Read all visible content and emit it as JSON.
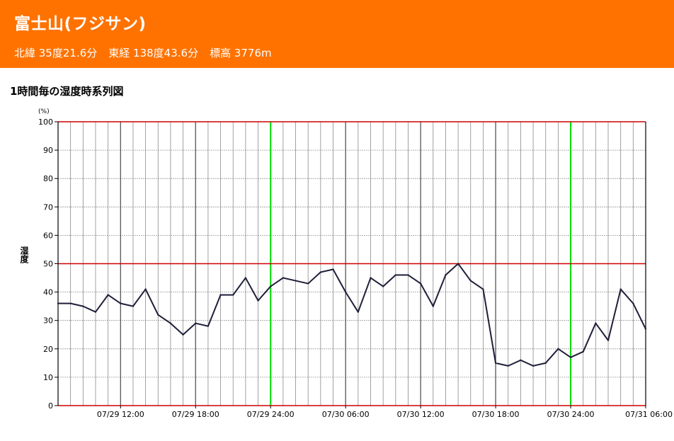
{
  "header": {
    "title": "富士山(フジサン)",
    "latitude": "北緯 35度21.6分",
    "longitude": "東経 138度43.6分",
    "elevation": "標高 3776m"
  },
  "section": {
    "title": "1時間毎の湿度時系列図"
  },
  "colors": {
    "header_bg": "#ff7200",
    "series_line": "#1f1f3a",
    "midnight_line": "#00dd00",
    "reference_line": "#cc0000"
  },
  "chart_data": {
    "type": "line",
    "title": "",
    "xlabel": "",
    "ylabel": "湿度",
    "yunit": "(%)",
    "ylim": [
      0,
      100
    ],
    "yticks": [
      0,
      10,
      20,
      30,
      40,
      50,
      60,
      70,
      80,
      90,
      100
    ],
    "grid": true,
    "x_tick_labels": [
      "07/29 12:00",
      "07/29 18:00",
      "07/29 24:00",
      "07/30 06:00",
      "07/30 12:00",
      "07/30 18:00",
      "07/30 24:00",
      "07/31 06:00"
    ],
    "x_start": "07/29 07:00",
    "x_end": "07/31 06:00",
    "series": [
      {
        "values": [
          36,
          36,
          35,
          33,
          39,
          36,
          35,
          41,
          32,
          29,
          25,
          29,
          28,
          39,
          39,
          45,
          37,
          42,
          45,
          44,
          43,
          47,
          48,
          40,
          33,
          45,
          42,
          46,
          46,
          43,
          35,
          46,
          50,
          44,
          41,
          15,
          14,
          16,
          14,
          15,
          20,
          17,
          19,
          29,
          23,
          41,
          36,
          27
        ]
      }
    ]
  }
}
